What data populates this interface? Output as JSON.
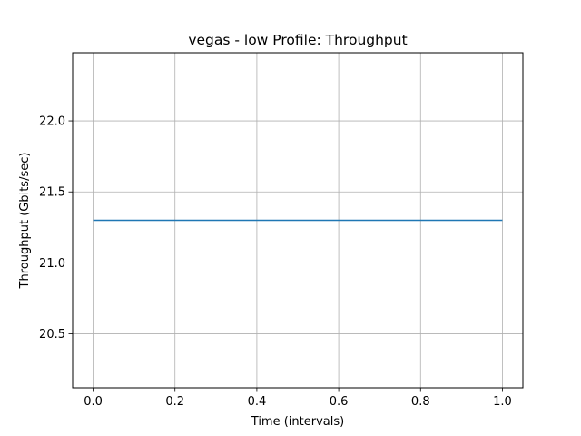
{
  "chart_data": {
    "type": "line",
    "title": "vegas - low Profile: Throughput",
    "xlabel": "Time (intervals)",
    "ylabel": "Throughput (Gbits/sec)",
    "xlim": [
      -0.05,
      1.05
    ],
    "ylim": [
      20.12,
      22.48
    ],
    "xticks": [
      0.0,
      0.2,
      0.4,
      0.6,
      0.8,
      1.0
    ],
    "xtick_labels": [
      "0.0",
      "0.2",
      "0.4",
      "0.6",
      "0.8",
      "1.0"
    ],
    "yticks": [
      20.5,
      21.0,
      21.5,
      22.0
    ],
    "ytick_labels": [
      "20.5",
      "21.0",
      "21.5",
      "22.0"
    ],
    "grid": true,
    "series": [
      {
        "x": [
          0.0,
          1.0
        ],
        "y": [
          21.3,
          21.3
        ],
        "color": "#1f77b4"
      }
    ]
  }
}
